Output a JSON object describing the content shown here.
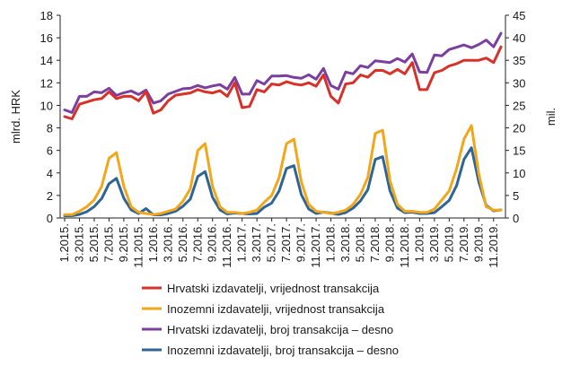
{
  "chart_data": {
    "type": "line",
    "title": "",
    "ylabel_left": "mlrd. HRK",
    "ylabel_right": "mil.",
    "ylim_left": [
      0,
      18
    ],
    "ylim_right": [
      0,
      45
    ],
    "yticks_left": [
      0,
      2,
      4,
      6,
      8,
      10,
      12,
      14,
      16,
      18
    ],
    "yticks_right": [
      0,
      5,
      10,
      15,
      20,
      25,
      30,
      35,
      40,
      45
    ],
    "xtick_labels": [
      "1.2015.",
      "3.2015.",
      "5.2015.",
      "7.2015.",
      "9.2015.",
      "11.2015.",
      "1.2016.",
      "3.2016.",
      "5.2016.",
      "7.2016.",
      "9.2016.",
      "11.2016.",
      "1.2017.",
      "3.2017.",
      "5.2017.",
      "7.2017.",
      "9.2017.",
      "11.2017.",
      "1.2018.",
      "3.2018.",
      "5.2018.",
      "7.2018.",
      "9.2018.",
      "11.2018.",
      "1.2019.",
      "3.2019.",
      "5.2019.",
      "7.2019.",
      "9.2019.",
      "11.2019."
    ],
    "series": [
      {
        "name": "Hrvatski izdavatelji, vrijednost transakcija",
        "axis": "left",
        "color": "#d7312a",
        "values": [
          9.0,
          8.8,
          10.1,
          10.3,
          10.5,
          10.6,
          11.2,
          10.6,
          10.8,
          10.8,
          10.4,
          11.2,
          9.3,
          9.6,
          10.4,
          10.9,
          11.0,
          11.1,
          11.4,
          11.2,
          11.1,
          11.3,
          10.8,
          12.0,
          9.8,
          9.9,
          11.4,
          11.2,
          11.9,
          11.8,
          12.1,
          11.9,
          11.8,
          12.0,
          11.7,
          12.7,
          10.8,
          10.2,
          11.9,
          12.0,
          12.7,
          12.5,
          13.1,
          13.1,
          12.8,
          13.2,
          12.8,
          13.8,
          11.4,
          11.4,
          12.9,
          13.1,
          13.5,
          13.7,
          14.0,
          14.0,
          14.0,
          14.2,
          13.8,
          15.2
        ]
      },
      {
        "name": "Inozemni izdavatelji, vrijednost transakcija",
        "axis": "left",
        "color": "#f2a71b",
        "values": [
          0.3,
          0.3,
          0.6,
          1.0,
          1.6,
          2.8,
          5.3,
          5.8,
          2.8,
          1.0,
          0.5,
          0.4,
          0.3,
          0.4,
          0.6,
          0.8,
          1.5,
          2.6,
          6.0,
          6.6,
          2.8,
          1.0,
          0.5,
          0.5,
          0.4,
          0.5,
          0.7,
          1.4,
          2.0,
          3.6,
          6.6,
          7.0,
          3.2,
          1.2,
          0.6,
          0.5,
          0.4,
          0.5,
          0.7,
          1.2,
          2.1,
          3.6,
          7.5,
          7.8,
          3.3,
          1.2,
          0.6,
          0.6,
          0.5,
          0.5,
          0.8,
          1.6,
          2.4,
          4.4,
          7.0,
          8.2,
          3.9,
          1.0,
          0.7,
          0.7
        ]
      },
      {
        "name": "Hrvatski izdavatelji, broj transakcija – desno",
        "axis": "right",
        "color": "#7b3fa0",
        "values": [
          24.0,
          23.4,
          27.0,
          27.0,
          28.0,
          27.8,
          28.8,
          27.2,
          27.8,
          28.2,
          27.4,
          28.4,
          25.5,
          26.0,
          27.5,
          28.1,
          28.7,
          28.8,
          29.4,
          28.9,
          29.3,
          29.6,
          28.6,
          31.2,
          27.5,
          27.5,
          30.5,
          29.7,
          31.5,
          31.5,
          31.6,
          31.2,
          31.0,
          31.8,
          30.8,
          33.2,
          29.4,
          28.6,
          32.4,
          32.0,
          33.8,
          33.4,
          34.9,
          34.7,
          34.5,
          35.4,
          34.6,
          36.4,
          32.4,
          32.3,
          36.2,
          36.0,
          37.4,
          37.9,
          38.4,
          37.8,
          38.5,
          39.5,
          38.0,
          41.0
        ]
      },
      {
        "name": "Inozemni izdavatelji, broj transakcija – desno",
        "axis": "right",
        "color": "#2f6596",
        "values": [
          0.5,
          0.5,
          0.8,
          1.4,
          2.5,
          4.3,
          7.6,
          8.8,
          4.4,
          1.8,
          1.0,
          2.1,
          0.7,
          0.7,
          1.0,
          1.5,
          2.6,
          4.2,
          9.2,
          10.3,
          4.6,
          1.8,
          0.9,
          1.1,
          1.0,
          0.9,
          1.0,
          2.4,
          3.3,
          6.0,
          11.0,
          11.6,
          5.2,
          2.0,
          1.0,
          1.3,
          1.1,
          0.8,
          1.2,
          2.2,
          3.8,
          6.3,
          13.0,
          13.6,
          6.0,
          2.2,
          1.2,
          1.3,
          1.0,
          1.0,
          1.2,
          2.5,
          3.9,
          7.2,
          13.0,
          15.6,
          8.0,
          2.8,
          1.6,
          1.8
        ]
      }
    ],
    "legend": [
      "Hrvatski izdavatelji, vrijednost transakcija",
      "Inozemni izdavatelji, vrijednost transakcija",
      "Hrvatski izdavatelji, broj transakcija – desno",
      "Inozemni izdavatelji, broj transakcija – desno"
    ],
    "legend_position": "bottom",
    "grid": false
  }
}
